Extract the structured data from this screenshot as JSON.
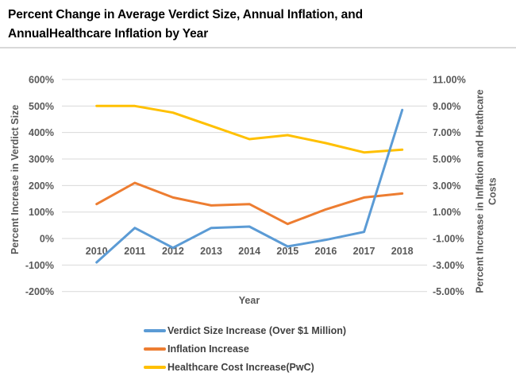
{
  "title": {
    "line1": "Percent Change in Average Verdict Size, Annual Inflation, and",
    "line2": "AnnualHealthcare Inflation by Year"
  },
  "chart_data": {
    "type": "line",
    "x": [
      "2010",
      "2011",
      "2012",
      "2013",
      "2014",
      "2015",
      "2016",
      "2017",
      "2018"
    ],
    "xlabel": "Year",
    "grid": true,
    "legend_position": "bottom-left",
    "left_axis": {
      "label": "Percent Increase in Verdict Size",
      "ticks": [
        "600%",
        "500%",
        "400%",
        "300%",
        "200%",
        "100%",
        "0%",
        "-100%",
        "-200%"
      ],
      "min": -200,
      "max": 600
    },
    "right_axis": {
      "label_line1": "Percent Increase in Inflation and Heathcare",
      "label_line2": "Costs",
      "ticks": [
        "11.00%",
        "9.00%",
        "7.00%",
        "5.00%",
        "3.00%",
        "1.00%",
        "-1.00%",
        "-3.00%",
        "-5.00%"
      ],
      "min": -5,
      "max": 11
    },
    "series": [
      {
        "name": "Verdict Size Increase (Over $1 Million)",
        "axis": "left",
        "color": "#5B9BD5",
        "values": [
          -90,
          40,
          -35,
          40,
          45,
          -30,
          -5,
          25,
          485
        ]
      },
      {
        "name": "Inflation Increase",
        "axis": "right",
        "color": "#ED7D31",
        "values": [
          1.6,
          3.2,
          2.1,
          1.5,
          1.6,
          0.1,
          1.2,
          2.1,
          2.4
        ]
      },
      {
        "name": "Healthcare Cost Increase(PwC)",
        "axis": "right",
        "color": "#FFC000",
        "values": [
          9.0,
          9.0,
          8.5,
          7.5,
          6.5,
          6.8,
          6.2,
          5.5,
          5.7
        ]
      }
    ]
  },
  "colors": {
    "gridline": "#D9D9D9",
    "tick_text": "#595959",
    "legend_text": "#404040",
    "title_text": "#000000"
  }
}
